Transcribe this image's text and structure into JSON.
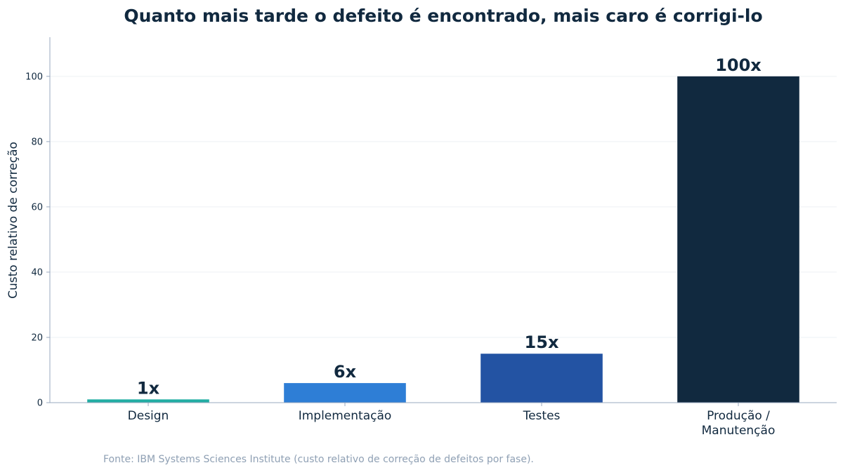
{
  "chart_data": {
    "type": "bar",
    "title": "Quanto mais tarde o defeito é encontrado, mais caro é corrigi-lo",
    "xlabel": "",
    "ylabel": "Custo relativo de correção",
    "categories": [
      [
        "Design"
      ],
      [
        "Implementação"
      ],
      [
        "Testes"
      ],
      [
        "Produção /",
        "Manutenção"
      ]
    ],
    "values": [
      1,
      6,
      15,
      100
    ],
    "data_labels": [
      "1x",
      "6x",
      "15x",
      "100x"
    ],
    "colors": [
      "#22ada3",
      "#2e7ed6",
      "#2353a3",
      "#11293f"
    ],
    "ylim": [
      0,
      112
    ],
    "yticks": [
      0,
      20,
      40,
      60,
      80,
      100
    ],
    "grid": "horizontal",
    "legend": "none"
  },
  "footer": {
    "source": "Fonte: IBM Systems Sciences Institute (custo relativo de correção de defeitos por fase)."
  }
}
